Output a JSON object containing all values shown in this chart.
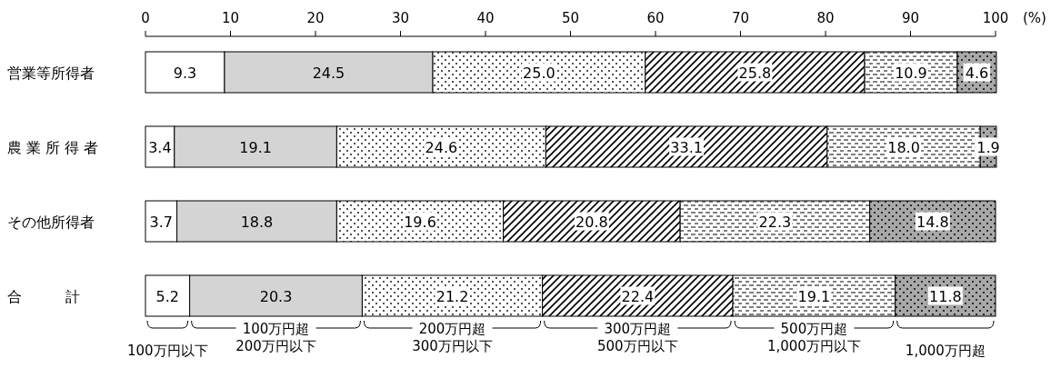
{
  "chart_data": {
    "type": "bar",
    "orientation": "horizontal",
    "stacked": true,
    "data_labels": true,
    "legend": "bottom",
    "xlabel": "(%)",
    "categories": [
      "営業等所得者",
      "農 業 所 得 者",
      "その他所得者",
      "合　　　計"
    ],
    "xlim": [
      0,
      100
    ],
    "xticks": [
      0,
      10,
      20,
      30,
      40,
      50,
      60,
      70,
      80,
      90,
      100
    ],
    "series": [
      {
        "name": "100万円以下",
        "color": "#ffffff",
        "values": [
          9.3,
          3.4,
          3.7,
          5.2
        ]
      },
      {
        "name": "100万円超\n200万円以下",
        "color": "#d4d4d4",
        "values": [
          24.5,
          19.1,
          18.8,
          20.3
        ]
      },
      {
        "name": "200万円超\n300万円以下",
        "color": "#000000",
        "values": [
          25.0,
          24.6,
          19.6,
          21.2
        ],
        "value_labels": [
          "25.0",
          "24.6",
          "19.6",
          "21.2"
        ]
      },
      {
        "name": "300万円超\n500万円以下",
        "color": "#000000",
        "values": [
          25.8,
          33.1,
          20.8,
          22.4
        ]
      },
      {
        "name": "500万円超\n1,000万円以下",
        "color": "#000000",
        "values": [
          10.9,
          18.0,
          22.3,
          19.1
        ],
        "value_labels": [
          "10.9",
          "18.0",
          "22.3",
          "19.1"
        ]
      },
      {
        "name": "1,000万円超",
        "color": "#000000",
        "values": [
          4.6,
          1.9,
          14.8,
          11.8
        ]
      }
    ]
  }
}
